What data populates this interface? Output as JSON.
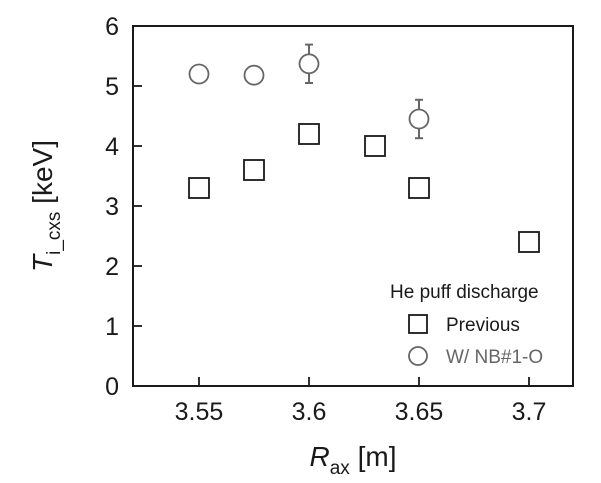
{
  "chart_data": {
    "type": "scatter",
    "title": "",
    "xlabel": {
      "main": "R",
      "sub": "ax",
      "unit": " [m]"
    },
    "ylabel": {
      "main": "T",
      "sub": "i_cxs",
      "unit": " [keV]"
    },
    "xlim": [
      3.52,
      3.72
    ],
    "ylim": [
      0,
      6
    ],
    "x_ticks": [
      "3.55",
      "3.6",
      "3.65",
      "3.7"
    ],
    "x_tick_values": [
      3.55,
      3.6,
      3.65,
      3.7
    ],
    "y_ticks": [
      "0",
      "1",
      "2",
      "3",
      "4",
      "5",
      "6"
    ],
    "y_tick_values": [
      0,
      1,
      2,
      3,
      4,
      5,
      6
    ],
    "grid": false,
    "legend": {
      "title": "He puff discharge",
      "placement": "bottom-right",
      "entries": [
        "Previous",
        "W/ NB#1-O"
      ]
    },
    "series": [
      {
        "name": "Previous",
        "marker": "square",
        "color": "#1a1a1a",
        "points": [
          {
            "x": 3.55,
            "y": 3.3
          },
          {
            "x": 3.575,
            "y": 3.6
          },
          {
            "x": 3.6,
            "y": 4.2
          },
          {
            "x": 3.63,
            "y": 4.0
          },
          {
            "x": 3.65,
            "y": 3.3
          },
          {
            "x": 3.7,
            "y": 2.4
          }
        ]
      },
      {
        "name": "W/ NB#1-O",
        "marker": "circle",
        "color": "#666666",
        "points": [
          {
            "x": 3.55,
            "y": 5.2,
            "err": null
          },
          {
            "x": 3.575,
            "y": 5.18,
            "err": null
          },
          {
            "x": 3.6,
            "y": 5.37,
            "err": 0.32
          },
          {
            "x": 3.65,
            "y": 4.45,
            "err": 0.32
          }
        ]
      }
    ]
  }
}
